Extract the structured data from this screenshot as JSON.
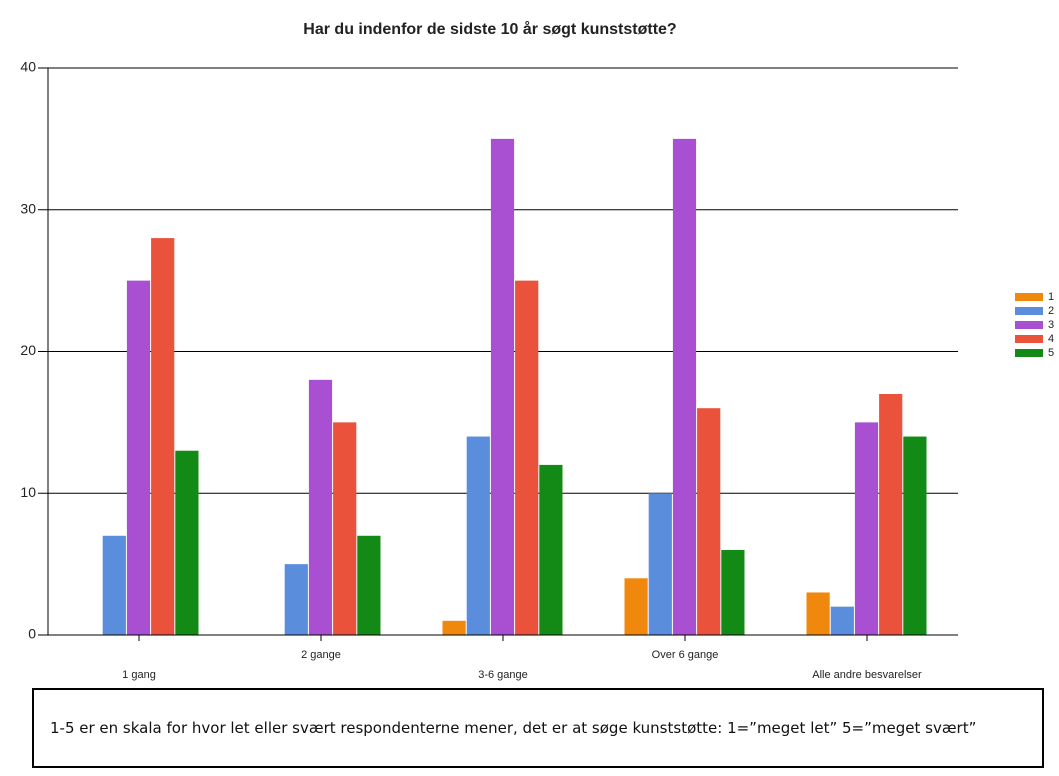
{
  "chart_data": {
    "type": "bar",
    "title": "Har du indenfor de sidste 10 år søgt kunststøtte?",
    "categories": [
      "1 gang",
      "2 gange",
      "3-6 gange",
      "Over 6 gange",
      "Alle andre besvarelser"
    ],
    "series": [
      {
        "name": "1",
        "color": "#f0880e",
        "values": [
          0,
          0,
          1,
          4,
          3
        ]
      },
      {
        "name": "2",
        "color": "#5a8edc",
        "values": [
          7,
          5,
          14,
          10,
          2
        ]
      },
      {
        "name": "3",
        "color": "#a950d2",
        "values": [
          25,
          18,
          35,
          35,
          15
        ]
      },
      {
        "name": "4",
        "color": "#ea523c",
        "values": [
          28,
          15,
          25,
          16,
          17
        ]
      },
      {
        "name": "5",
        "color": "#138a16",
        "values": [
          13,
          7,
          12,
          6,
          14
        ]
      }
    ],
    "ylim": [
      0,
      40
    ],
    "yticks": [
      0,
      10,
      20,
      30,
      40
    ],
    "grid": true,
    "legend": "right"
  },
  "note": "1-5 er en skala for hvor let eller svært respondenterne mener, det er at søge kunststøtte: 1=”meget let” 5=”meget svært”"
}
